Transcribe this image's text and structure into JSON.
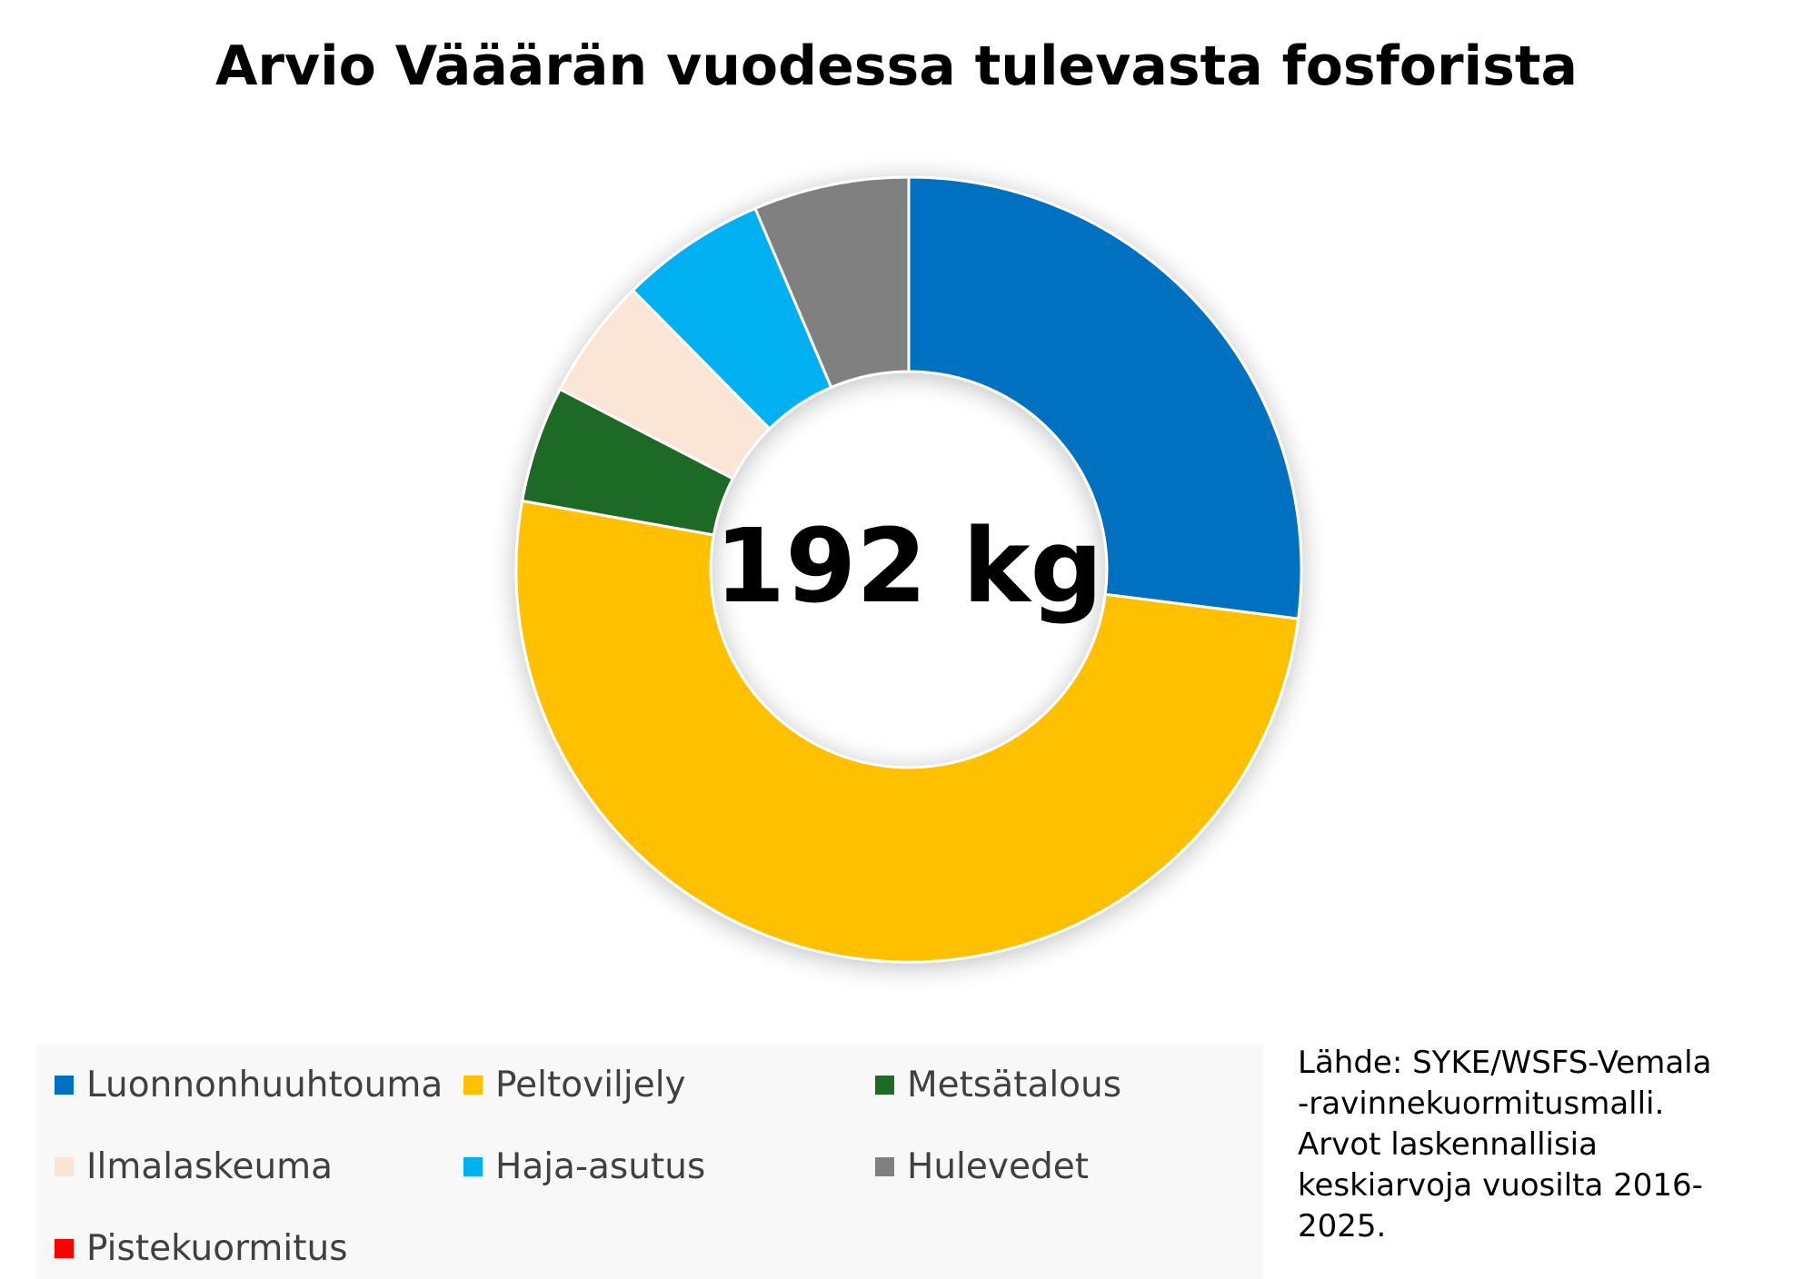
{
  "title": "Arvio Vääärän vuodessa tulevasta fosforista",
  "center_label": "192 kg",
  "source_lines": [
    "Lähde: SYKE/WSFS-Vemala",
    "-ravinnekuormitusmalli.",
    "Arvot laskennallisia",
    "keskiarvoja vuosilta 2016-",
    "2025."
  ],
  "chart_data": {
    "type": "pie",
    "variant": "donut",
    "total": "192 kg",
    "slices": [
      {
        "label": "Luonnonhuuhtouma",
        "value": 27.0,
        "color": "#0070c0"
      },
      {
        "label": "Peltoviljely",
        "value": 50.8,
        "color": "#ffc000"
      },
      {
        "label": "Metsätalous",
        "value": 4.8,
        "color": "#1e6b28"
      },
      {
        "label": "Ilmalaskeuma",
        "value": 5.0,
        "color": "#fbe5d6"
      },
      {
        "label": "Haja-asutus",
        "value": 6.0,
        "color": "#00b0f0"
      },
      {
        "label": "Hulevedet",
        "value": 6.4,
        "color": "#808080"
      },
      {
        "label": "Pistekuormitus",
        "value": 0,
        "color": "#ff0000"
      }
    ],
    "legend_position": "bottom"
  }
}
